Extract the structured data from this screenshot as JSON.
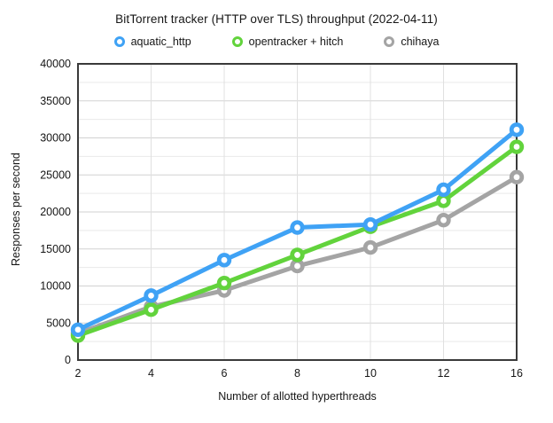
{
  "chart_data": {
    "type": "line",
    "title": "BitTorrent tracker (HTTP over TLS) throughput (2022-04-11)",
    "xlabel": "Number of allotted hyperthreads",
    "ylabel": "Responses per second",
    "categories": [
      2,
      4,
      6,
      8,
      10,
      12,
      16
    ],
    "series": [
      {
        "name": "chihaya",
        "color": "#A4A4A4",
        "values": [
          3600,
          7200,
          9400,
          12700,
          15200,
          18900,
          24700
        ]
      },
      {
        "name": "opentracker + hitch",
        "color": "#62D33C",
        "values": [
          3300,
          6800,
          10400,
          14200,
          18000,
          21500,
          28800
        ]
      },
      {
        "name": "aquatic_http",
        "color": "#3FA2F5",
        "values": [
          4100,
          8700,
          13500,
          17900,
          18300,
          23000,
          31100
        ]
      }
    ],
    "legend": [
      "aquatic_http",
      "opentracker + hitch",
      "chihaya"
    ],
    "legend_position": "top",
    "ylim": [
      0,
      40000
    ],
    "y_major_step": 5000,
    "y_minor_step": 2500,
    "y_tick_labels": [
      "0",
      "5000",
      "10000",
      "15000",
      "20000",
      "25000",
      "30000",
      "35000",
      "40000"
    ],
    "x_tick_labels": [
      "2",
      "4",
      "6",
      "8",
      "10",
      "12",
      "16"
    ],
    "grid": true,
    "marker_style": "ring",
    "frame_color": "#3A3A3A",
    "major_grid_color": "#D2D2D2",
    "minor_grid_color": "#E9E9E9",
    "vertical_grid_color": "#E0E0E0",
    "text_color": "#161616"
  }
}
